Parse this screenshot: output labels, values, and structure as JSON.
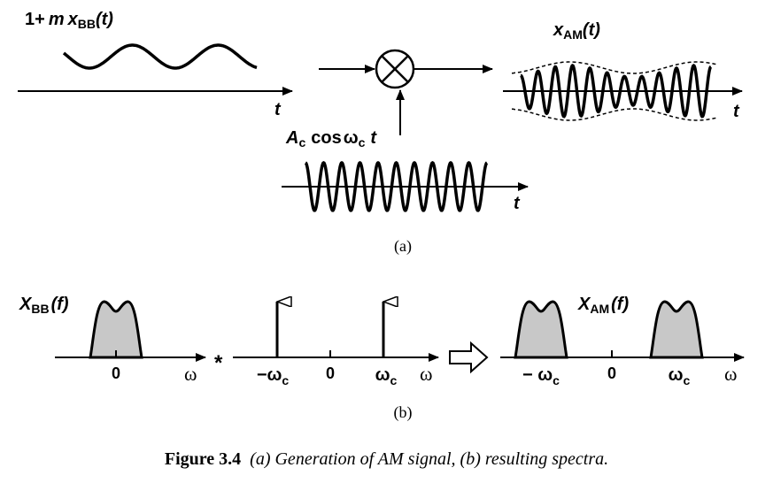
{
  "part_a": {
    "bb_label_prefix": "1+",
    "bb_label_m": "m",
    "bb_label_x": "x",
    "bb_label_sub": "BB",
    "bb_label_arg": "(t)",
    "t_label": "t",
    "carrier_amp": "A",
    "carrier_amp_sub": "c",
    "carrier_cos": "cos",
    "carrier_omega": "ω",
    "carrier_omega_sub": "c",
    "carrier_t": "t",
    "am_x": "x",
    "am_sub": "AM",
    "am_arg": "(t)",
    "caption": "(a)"
  },
  "part_b": {
    "xbb_label": "X",
    "xbb_sub": "BB",
    "xbb_arg": "(f)",
    "zero": "0",
    "omega": "ω",
    "conv_symbol": "*",
    "neg_omega_c": "−ω",
    "neg_omega_c_spaced": "− ω",
    "omega_c": "ω",
    "c_sub": "c",
    "xam_label": "X",
    "xam_sub": "AM",
    "xam_arg": "(f)",
    "caption": "(b)"
  },
  "figure_caption": {
    "number": "Figure 3.4",
    "text": "(a) Generation of AM signal, (b) resulting spectra."
  }
}
